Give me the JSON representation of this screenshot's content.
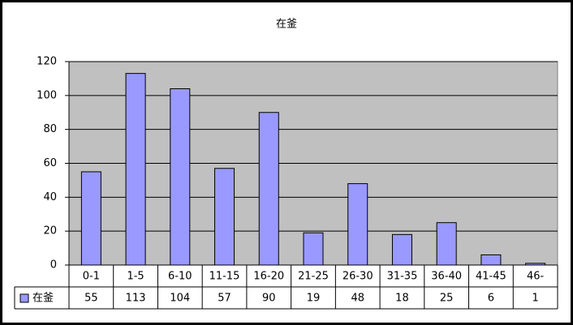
{
  "chart_data": {
    "type": "bar",
    "title": "在釜",
    "categories": [
      "0-1",
      "1-5",
      "6-10",
      "11-15",
      "16-20",
      "21-25",
      "26-30",
      "31-35",
      "36-40",
      "41-45",
      "46-"
    ],
    "series": [
      {
        "name": "在釜",
        "color": "#9999ff",
        "values": [
          55,
          113,
          104,
          57,
          90,
          19,
          48,
          18,
          25,
          6,
          1
        ]
      }
    ],
    "ylim": [
      0,
      120
    ],
    "yticks": [
      0,
      20,
      40,
      60,
      80,
      100,
      120
    ],
    "grid": true
  }
}
